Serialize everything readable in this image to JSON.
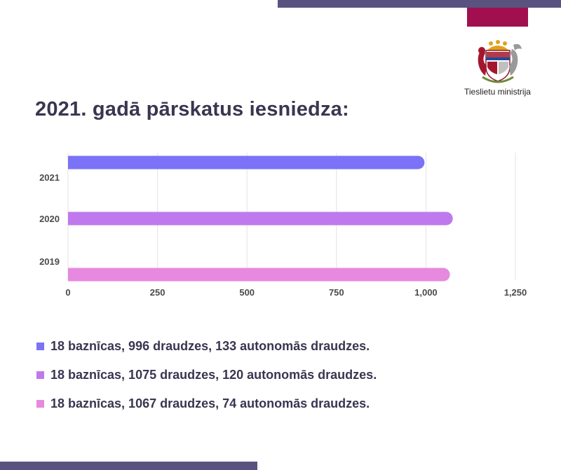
{
  "heading": "2021. gadā pārskatus iesniedza:",
  "ministry_name": "Tieslietu ministrija",
  "colors": {
    "bar_2021": "#7b72f7",
    "bar_2020": "#bf79ec",
    "bar_2019": "#e689df",
    "accent": "#a10f4f",
    "frame": "#5a5380"
  },
  "chart_data": {
    "type": "bar",
    "orientation": "horizontal",
    "categories": [
      "2021",
      "2020",
      "2019"
    ],
    "values": [
      996,
      1075,
      1067
    ],
    "xlim": [
      0,
      1250
    ],
    "xticks": [
      0,
      250,
      500,
      750,
      1000,
      1250
    ],
    "xtick_labels": [
      "0",
      "250",
      "500",
      "750",
      "1,000",
      "1,250"
    ],
    "grid": "vertical",
    "bar_colors": [
      "#7b72f7",
      "#bf79ec",
      "#e689df"
    ]
  },
  "legend": [
    {
      "text": "18 baznīcas, 996 draudzes, 133 autonomās draudzes.",
      "color": "#7b72f7"
    },
    {
      "text": "18 baznīcas, 1075 draudzes, 120 autonomās draudzes.",
      "color": "#bf79ec"
    },
    {
      "text": "18 baznīcas, 1067 draudzes, 74 autonomās draudzes.",
      "color": "#e689df"
    }
  ]
}
